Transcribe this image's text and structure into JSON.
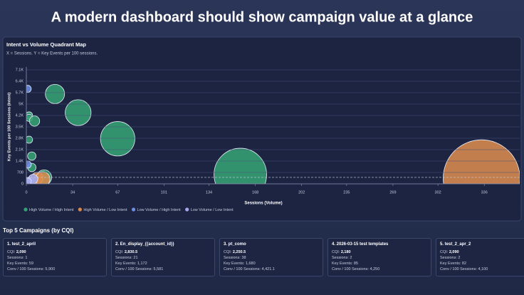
{
  "page": {
    "title": "A modern dashboard should show campaign value  at a glance"
  },
  "chart_data": {
    "type": "scatter",
    "title": "Intent vs Volume Quadrant Map",
    "subtitle": "X = Sessions. Y = Key Events per 100 sessions.",
    "xlabel": "Sessions (Volume)",
    "ylabel": "Key Events per 100 Sessions (Intent)",
    "xlim": [
      0,
      362
    ],
    "xticks": [
      0,
      34,
      67,
      101,
      134,
      168,
      202,
      235,
      269,
      302,
      336
    ],
    "ylim": [
      0,
      7080
    ],
    "yticks": [
      0,
      708,
      {
        "value": 1416,
        "label": "1.4K"
      },
      {
        "value": 2124,
        "label": "2.1K"
      },
      {
        "value": 2832,
        "label": "2.8K"
      },
      {
        "value": 3540,
        "label": "3.5K"
      },
      {
        "value": 4248,
        "label": "4.2K"
      },
      {
        "value": 4956,
        "label": "5K"
      },
      {
        "value": 5664,
        "label": "5.7K"
      },
      {
        "value": 6372,
        "label": "6.4K"
      },
      {
        "value": 7080,
        "label": "7.1K"
      }
    ],
    "hline": 400,
    "grid": true,
    "legend": "bottom-left",
    "series": [
      {
        "name": "High Volume / High Intent",
        "color": "#35a274",
        "x": [
          21,
          38,
          67,
          157,
          2,
          2,
          6,
          2,
          4,
          4,
          13
        ],
        "values": [
          5581,
          4421,
          2800,
          575,
          4250,
          4100,
          3900,
          2743,
          1726,
          1018,
          398
        ]
      },
      {
        "name": "High Volume / Low Intent",
        "color": "#d98b4f",
        "x": [
          334,
          8,
          12
        ],
        "values": [
          350,
          350,
          300
        ]
      },
      {
        "name": "Low Volume / High Intent",
        "color": "#6d8de0",
        "x": [
          1,
          1
        ],
        "values": [
          5900,
          1200
        ]
      },
      {
        "name": "Low Volume / Low Intent",
        "color": "#a3a8ec",
        "x": [
          3,
          5,
          1
        ],
        "values": [
          200,
          300,
          150
        ]
      }
    ]
  },
  "top_campaigns": {
    "title": "Top 5 Campaigns (by CQI)",
    "fields": [
      "CQI:",
      "Sessions:",
      "Key Events:",
      "Conv / 100 Sessions:"
    ],
    "items": [
      {
        "name": "1. test_2_april",
        "values": [
          "2,090",
          "1",
          "59",
          "5,900"
        ]
      },
      {
        "name": "2. En_display_{{account_id}}",
        "values": [
          "2,830.5",
          "21",
          "1,172",
          "5,581"
        ]
      },
      {
        "name": "3. pt_como",
        "values": [
          "2,250.5",
          "38",
          "1,680",
          "4,421.1"
        ]
      },
      {
        "name": "4. 2026-03-15 test templates",
        "values": [
          "2,180",
          "2",
          "85",
          "4,250"
        ]
      },
      {
        "name": "5. test_2_apr_2",
        "values": [
          "2,090",
          "2",
          "82",
          "4,100"
        ]
      }
    ]
  }
}
